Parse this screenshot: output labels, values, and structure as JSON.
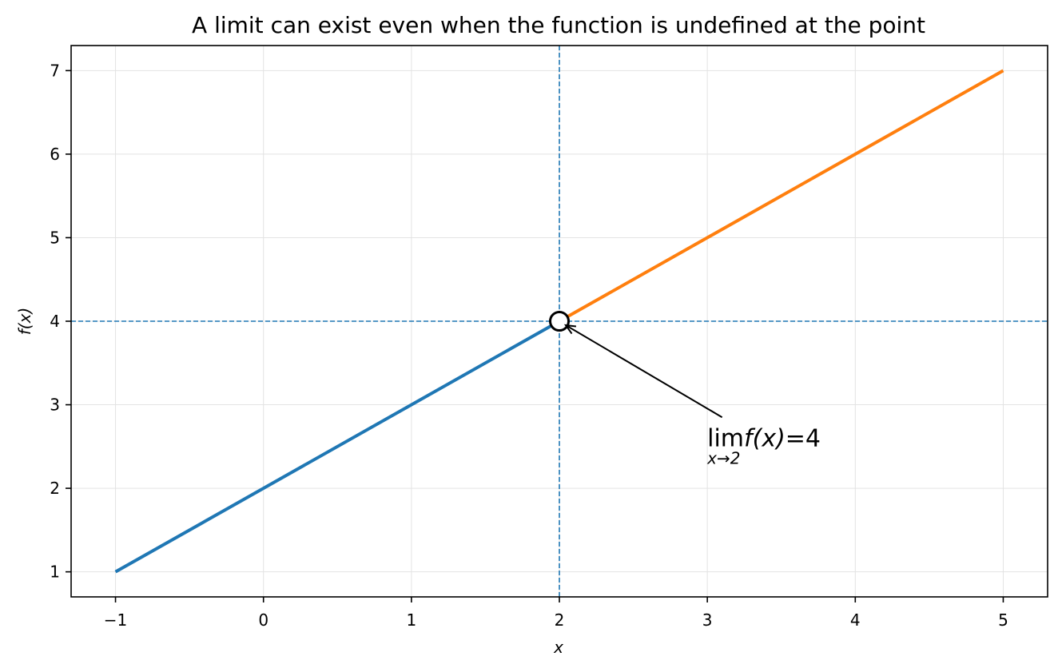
{
  "chart_data": {
    "type": "line",
    "title": "A limit can exist even when the function is undefined at the point",
    "xlabel": "x",
    "ylabel": "f(x)",
    "xlim": [
      -1.3,
      5.3
    ],
    "ylim": [
      0.7,
      7.3
    ],
    "x_ticks": [
      -1,
      0,
      1,
      2,
      3,
      4,
      5
    ],
    "x_tick_labels": [
      "−1",
      "0",
      "1",
      "2",
      "3",
      "4",
      "5"
    ],
    "y_ticks": [
      1,
      2,
      3,
      4,
      5,
      6,
      7
    ],
    "y_tick_labels": [
      "1",
      "2",
      "3",
      "4",
      "5",
      "6",
      "7"
    ],
    "grid": true,
    "series": [
      {
        "x": [
          -1,
          2
        ],
        "y": [
          1,
          4
        ],
        "color": "#1f77b4"
      },
      {
        "x": [
          2,
          5
        ],
        "y": [
          4,
          7
        ],
        "color": "#ff7f0e"
      }
    ],
    "reference_lines": {
      "x": 2,
      "y": 4,
      "color": "#1f77b4",
      "style": "dashed"
    },
    "open_point": {
      "x": 2,
      "y": 4
    },
    "annotation": {
      "lim_text": "lim",
      "func_text": "f(x)",
      "equals_text": "=4",
      "subscript": "x→2",
      "text_x": 3.0,
      "text_y": 2.6,
      "arrow_from": [
        3.1,
        2.85
      ],
      "arrow_to": [
        2.0,
        4.0
      ]
    }
  }
}
